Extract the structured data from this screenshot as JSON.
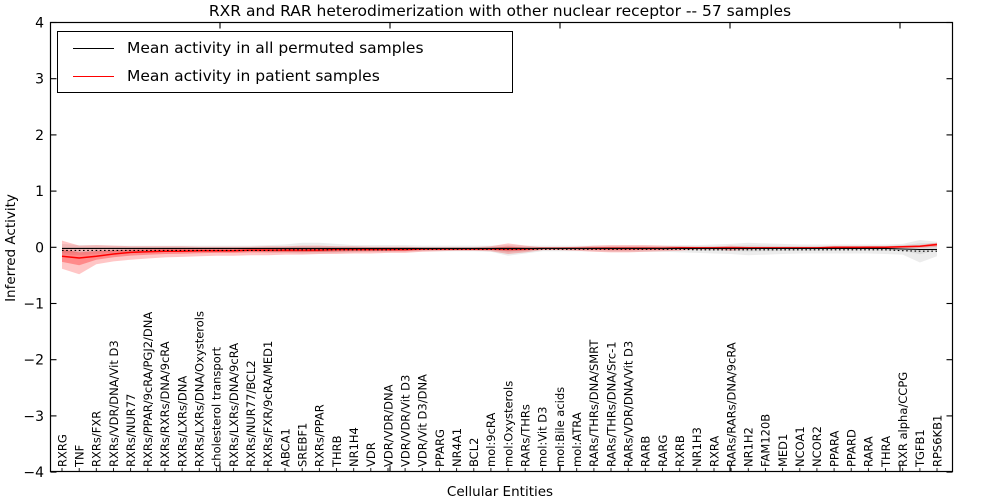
{
  "figure": {
    "title": "RXR and RAR heterodimerization with other nuclear receptor -- 57 samples"
  },
  "chart_data": {
    "type": "line",
    "title": "RXR and RAR heterodimerization with other nuclear receptor -- 57 samples",
    "xlabel": "Cellular Entities",
    "ylabel": "Inferred Activity",
    "ylim": [
      -4,
      4
    ],
    "yticks": [
      -4,
      -3,
      -2,
      -1,
      0,
      1,
      2,
      3,
      4
    ],
    "grid": false,
    "legend": {
      "position": "upper-left",
      "entries": [
        {
          "label": "Mean activity in all permuted samples",
          "color": "#000000"
        },
        {
          "label": "Mean activity in patient samples",
          "color": "#ff0000"
        }
      ]
    },
    "colors": {
      "permuted_line": "#000000",
      "patient_line": "#ff0000",
      "permuted_band": "#808080",
      "patient_band": "#ff0000",
      "axis": "#000000"
    },
    "categories": [
      "RXRG",
      "TNF",
      "RXRs/FXR",
      "RXRs/VDR/DNA/Vit D3",
      "RXRs/NUR77",
      "RXRs/PPAR/9cRA/PGJ2/DNA",
      "RXRs/RXRs/DNA/9cRA",
      "RXRs/LXRs/DNA",
      "RXRs/LXRs/DNA/Oxysterols",
      "cholesterol transport",
      "RXRs/LXRs/DNA/9cRA",
      "RXRs/NUR77/BCL2",
      "RXRs/FXR/9cRA/MED1",
      "ABCA1",
      "SREBF1",
      "RXRs/PPAR",
      "THRB",
      "NR1H4",
      "VDR",
      "VDR/VDR/DNA",
      "VDR/VDR/Vit D3",
      "VDR/Vit D3/DNA",
      "PPARG",
      "NR4A1",
      "BCL2",
      "mol:9cRA",
      "mol:Oxysterols",
      "RARs/THRs",
      "mol:Vit D3",
      "mol:Bile acids",
      "mol:ATRA",
      "RARs/THRs/DNA/SMRT",
      "RARs/THRs/DNA/Src-1",
      "RARs/VDR/DNA/Vit D3",
      "RARB",
      "RARG",
      "RXRB",
      "NR1H3",
      "RXRA",
      "RARs/RARs/DNA/9cRA",
      "NR1H2",
      "FAM120B",
      "MED1",
      "NCOA1",
      "NCOR2",
      "PPARA",
      "PPARD",
      "RARA",
      "THRA",
      "RXR alpha/CCPG",
      "TGFB1",
      "RPS6KB1"
    ],
    "series": [
      {
        "name": "Mean activity in all permuted samples",
        "color": "#000000",
        "style": "solid",
        "values": [
          -0.02,
          -0.02,
          -0.02,
          -0.02,
          -0.02,
          -0.02,
          -0.02,
          -0.02,
          -0.02,
          -0.02,
          -0.02,
          -0.02,
          -0.02,
          -0.02,
          -0.02,
          -0.02,
          -0.02,
          -0.02,
          -0.02,
          -0.02,
          -0.02,
          -0.02,
          -0.02,
          -0.02,
          -0.02,
          -0.02,
          -0.02,
          -0.02,
          -0.02,
          -0.02,
          -0.02,
          -0.02,
          -0.02,
          -0.02,
          -0.02,
          -0.02,
          -0.02,
          -0.02,
          -0.02,
          -0.02,
          -0.02,
          -0.02,
          -0.02,
          -0.02,
          -0.02,
          -0.02,
          -0.02,
          -0.02,
          -0.02,
          -0.03,
          -0.04,
          -0.04
        ]
      },
      {
        "name": "Mean activity in patient samples",
        "color": "#ff0000",
        "style": "solid",
        "values": [
          -0.16,
          -0.19,
          -0.16,
          -0.12,
          -0.09,
          -0.08,
          -0.07,
          -0.07,
          -0.06,
          -0.06,
          -0.06,
          -0.05,
          -0.05,
          -0.05,
          -0.05,
          -0.05,
          -0.04,
          -0.04,
          -0.04,
          -0.04,
          -0.04,
          -0.03,
          -0.03,
          -0.03,
          -0.03,
          -0.03,
          -0.03,
          -0.03,
          -0.02,
          -0.02,
          -0.02,
          -0.02,
          -0.02,
          -0.02,
          -0.02,
          -0.02,
          -0.01,
          -0.01,
          -0.01,
          -0.01,
          -0.01,
          -0.01,
          -0.01,
          -0.01,
          -0.01,
          0,
          0,
          0,
          0,
          0.01,
          0.02,
          0.05
        ]
      },
      {
        "name": "reference dotted",
        "color": "#000000",
        "style": "dotted",
        "values": [
          -0.055,
          -0.055,
          -0.055,
          -0.055,
          -0.055,
          -0.055,
          -0.055,
          -0.055,
          -0.055,
          -0.055,
          -0.055,
          -0.055,
          -0.055,
          -0.045,
          -0.045,
          -0.045,
          -0.045,
          -0.045,
          -0.045,
          -0.045,
          -0.035,
          -0.035,
          -0.035,
          -0.035,
          -0.035,
          -0.035,
          -0.035,
          -0.035,
          -0.035,
          -0.035,
          -0.035,
          -0.035,
          -0.035,
          -0.035,
          -0.035,
          -0.035,
          -0.035,
          -0.045,
          -0.045,
          -0.045,
          -0.045,
          -0.045,
          -0.045,
          -0.045,
          -0.045,
          -0.045,
          -0.045,
          -0.045,
          -0.045,
          -0.06,
          -0.07,
          -0.07
        ]
      }
    ],
    "bands": [
      {
        "name": "permuted range",
        "color": "#808080",
        "opacity": 0.28,
        "upper": [
          0.06,
          0.04,
          0.04,
          0.03,
          0.03,
          0.03,
          0.03,
          0.03,
          0.03,
          0.03,
          0.03,
          0.03,
          0.04,
          0.05,
          0.08,
          0.08,
          0.06,
          0.04,
          0.04,
          0.04,
          0.04,
          0.03,
          0.03,
          0.03,
          0.03,
          0.03,
          0.04,
          0.03,
          0.03,
          0.03,
          0.03,
          0.03,
          0.03,
          0.03,
          0.03,
          0.03,
          0.04,
          0.04,
          0.05,
          0.06,
          0.08,
          0.07,
          0.06,
          0.05,
          0.05,
          0.05,
          0.05,
          0.05,
          0.05,
          0.06,
          0.13,
          0.1
        ],
        "lower": [
          -0.1,
          -0.09,
          -0.08,
          -0.08,
          -0.08,
          -0.08,
          -0.08,
          -0.08,
          -0.08,
          -0.08,
          -0.08,
          -0.08,
          -0.09,
          -0.1,
          -0.11,
          -0.11,
          -0.1,
          -0.09,
          -0.08,
          -0.08,
          -0.08,
          -0.07,
          -0.07,
          -0.07,
          -0.07,
          -0.08,
          -0.15,
          -0.11,
          -0.07,
          -0.07,
          -0.07,
          -0.07,
          -0.08,
          -0.08,
          -0.08,
          -0.08,
          -0.09,
          -0.1,
          -0.11,
          -0.12,
          -0.14,
          -0.13,
          -0.12,
          -0.11,
          -0.11,
          -0.11,
          -0.11,
          -0.11,
          -0.12,
          -0.13,
          -0.27,
          -0.16
        ]
      },
      {
        "name": "patient range",
        "color": "#ff0000",
        "opacity": 0.3,
        "upper": [
          0.12,
          0.03,
          0.04,
          0.03,
          0.02,
          0.02,
          0.02,
          0.02,
          0.01,
          0.01,
          0.01,
          0.01,
          0.02,
          0.02,
          0.03,
          0.03,
          0.02,
          0.02,
          0.01,
          0.01,
          0.01,
          0,
          0,
          0,
          0,
          0.02,
          0.07,
          0.03,
          0,
          0,
          0.01,
          0.03,
          0.04,
          0.04,
          0.04,
          0.03,
          0.02,
          0.01,
          0.01,
          0.03,
          0.01,
          0.01,
          0.01,
          0.01,
          0.01,
          0.01,
          0.01,
          0.02,
          0.02,
          0.03,
          0.04,
          0.08
        ],
        "lower": [
          -0.38,
          -0.48,
          -0.3,
          -0.25,
          -0.22,
          -0.2,
          -0.18,
          -0.17,
          -0.16,
          -0.15,
          -0.15,
          -0.14,
          -0.14,
          -0.13,
          -0.13,
          -0.12,
          -0.12,
          -0.11,
          -0.11,
          -0.1,
          -0.1,
          -0.08,
          -0.07,
          -0.06,
          -0.06,
          -0.07,
          -0.12,
          -0.09,
          -0.05,
          -0.05,
          -0.06,
          -0.08,
          -0.09,
          -0.09,
          -0.08,
          -0.07,
          -0.06,
          -0.04,
          -0.04,
          -0.06,
          -0.04,
          -0.03,
          -0.03,
          -0.03,
          -0.03,
          -0.02,
          -0.02,
          -0.02,
          -0.02,
          -0.01,
          -0.01,
          0.01
        ]
      }
    ]
  }
}
